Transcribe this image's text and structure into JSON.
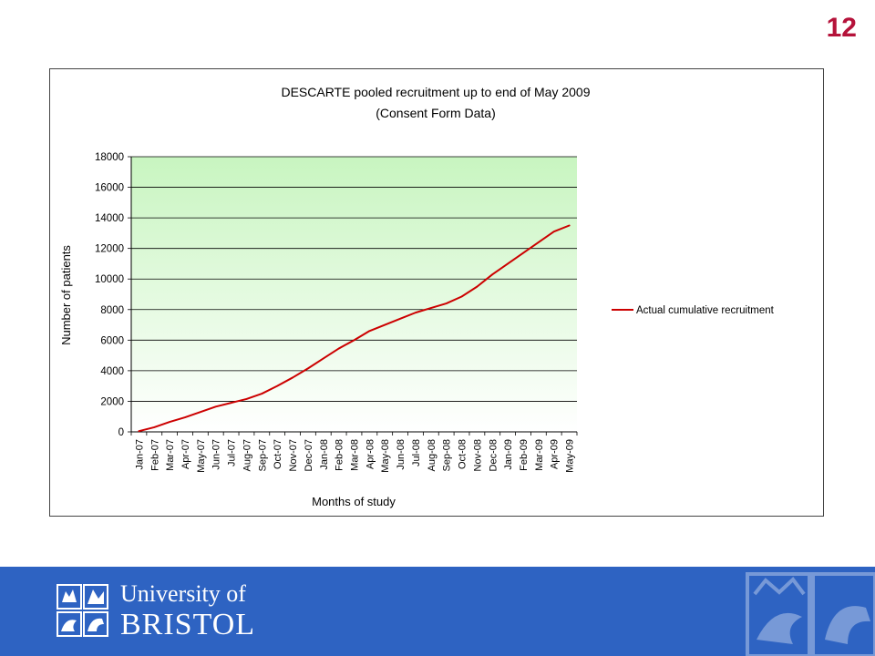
{
  "slide": {
    "number": "12"
  },
  "branding": {
    "line1": "University of",
    "line2": "BRISTOL"
  },
  "colors": {
    "accent_red": "#b5123a",
    "footer_blue": "#2e63c2",
    "series_line": "#cc0000",
    "plot_top": "#c8f5c0",
    "plot_bottom": "#ffffff"
  },
  "chart_data": {
    "type": "line",
    "title": "DESCARTE pooled recruitment up to end of May 2009",
    "subtitle": "(Consent Form Data)",
    "xlabel": "Months of study",
    "ylabel": "Number of patients",
    "ylim": [
      0,
      18000
    ],
    "yticks": [
      0,
      2000,
      4000,
      6000,
      8000,
      10000,
      12000,
      14000,
      16000,
      18000
    ],
    "grid": true,
    "legend_position": "right",
    "categories": [
      "Jan-07",
      "Feb-07",
      "Mar-07",
      "Apr-07",
      "May-07",
      "Jun-07",
      "Jul-07",
      "Aug-07",
      "Sep-07",
      "Oct-07",
      "Nov-07",
      "Dec-07",
      "Jan-08",
      "Feb-08",
      "Mar-08",
      "Apr-08",
      "May-08",
      "Jun-08",
      "Jul-08",
      "Aug-08",
      "Sep-08",
      "Oct-08",
      "Nov-08",
      "Dec-08",
      "Jan-09",
      "Feb-09",
      "Mar-09",
      "Apr-09",
      "May-09"
    ],
    "series": [
      {
        "name": "Actual cumulative recruitment",
        "color": "#cc0000",
        "values": [
          50,
          300,
          650,
          950,
          1300,
          1650,
          1900,
          2150,
          2500,
          3000,
          3550,
          4150,
          4800,
          5450,
          6000,
          6600,
          7000,
          7400,
          7800,
          8100,
          8400,
          8850,
          9500,
          10300,
          11000,
          11700,
          12400,
          13100,
          13500
        ]
      }
    ]
  }
}
